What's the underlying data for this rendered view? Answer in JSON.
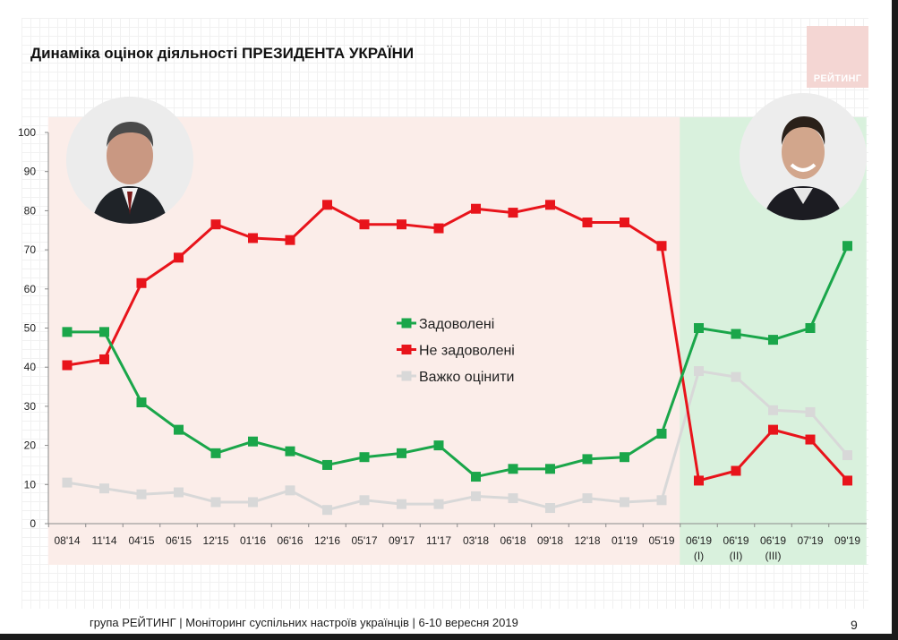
{
  "title": "Динаміка оцінок діяльності ПРЕЗИДЕНТА УКРАЇНИ",
  "logo_text": "РЕЙТИНГ",
  "footer": "група РЕЙТИНГ | Моніторинг суспільних настроїв українців | 6-10 вересня 2019",
  "page_number": "9",
  "colors": {
    "satisfied": "#1aa64a",
    "dissatisfied": "#e8141b",
    "hard": "#d8d8d8",
    "period1_bg": "#fbede9",
    "period2_bg": "#d9f1dd"
  },
  "chart_data": {
    "type": "line",
    "categories": [
      "08'14",
      "11'14",
      "04'15",
      "06'15",
      "12'15",
      "01'16",
      "06'16",
      "12'16",
      "05'17",
      "09'17",
      "11'17",
      "03'18",
      "06'18",
      "09'18",
      "12'18",
      "01'19",
      "05'19",
      "06'19",
      "06'19",
      "06'19",
      "07'19",
      "09'19"
    ],
    "category_sublabels": [
      "",
      "",
      "",
      "",
      "",
      "",
      "",
      "",
      "",
      "",
      "",
      "",
      "",
      "",
      "",
      "",
      "",
      "(I)",
      "(II)",
      "(III)",
      "",
      ""
    ],
    "ylim": [
      0,
      100
    ],
    "yticks": [
      0,
      10,
      20,
      30,
      40,
      50,
      60,
      70,
      80,
      90,
      100
    ],
    "legend": {
      "position": "center"
    },
    "series": [
      {
        "name": "Задоволені",
        "color": "#1aa64a",
        "values": [
          49,
          49,
          31,
          24,
          18,
          21,
          18.5,
          15,
          17,
          18,
          20,
          12,
          14,
          14,
          16.5,
          17,
          23,
          50,
          48.5,
          47,
          50,
          71
        ]
      },
      {
        "name": "Не задоволені",
        "color": "#e8141b",
        "values": [
          40.5,
          42,
          61.5,
          68,
          76.5,
          73,
          72.5,
          81.5,
          76.5,
          76.5,
          75.5,
          80.5,
          79.5,
          81.5,
          77,
          77,
          71,
          11,
          13.5,
          24,
          21.5,
          11
        ]
      },
      {
        "name": "Важко оцінити",
        "color": "#d8d8d8",
        "values": [
          10.5,
          9,
          7.5,
          8,
          5.5,
          5.5,
          8.5,
          3.5,
          6,
          5,
          5,
          7,
          6.5,
          4,
          6.5,
          5.5,
          6,
          39,
          37.5,
          29,
          28.5,
          17.5
        ]
      }
    ],
    "periods": [
      {
        "from": 0,
        "to": 16,
        "color": "#fbede9"
      },
      {
        "from": 17,
        "to": 21,
        "color": "#d9f1dd"
      }
    ]
  }
}
